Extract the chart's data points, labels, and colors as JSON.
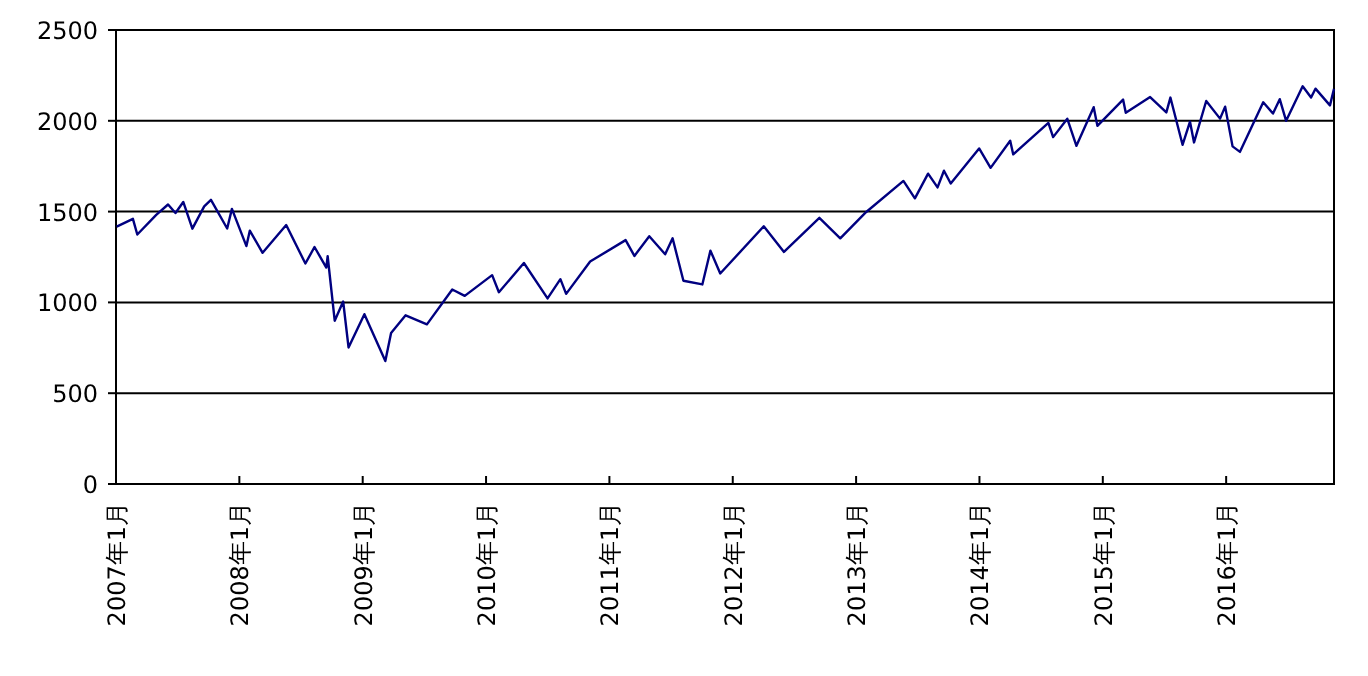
{
  "chart_data": {
    "type": "line",
    "color": "#000080",
    "x": [
      "2007-01-03",
      "2007-02-20",
      "2007-03-05",
      "2007-04-30",
      "2007-06-04",
      "2007-06-26",
      "2007-07-19",
      "2007-08-15",
      "2007-09-19",
      "2007-10-09",
      "2007-11-26",
      "2007-12-10",
      "2008-01-22",
      "2008-02-01",
      "2008-03-10",
      "2008-05-19",
      "2008-07-15",
      "2008-08-11",
      "2008-09-15",
      "2008-09-19",
      "2008-10-10",
      "2008-11-04",
      "2008-11-20",
      "2009-01-06",
      "2009-03-09",
      "2009-03-26",
      "2009-05-08",
      "2009-07-10",
      "2009-09-23",
      "2009-10-30",
      "2010-01-19",
      "2010-02-08",
      "2010-04-23",
      "2010-07-02",
      "2010-08-09",
      "2010-08-26",
      "2010-11-05",
      "2011-02-18",
      "2011-03-16",
      "2011-04-29",
      "2011-06-15",
      "2011-07-07",
      "2011-08-08",
      "2011-10-03",
      "2011-10-27",
      "2011-11-25",
      "2012-04-02",
      "2012-06-01",
      "2012-09-14",
      "2012-11-15",
      "2013-01-31",
      "2013-05-21",
      "2013-06-24",
      "2013-08-02",
      "2013-08-30",
      "2013-09-18",
      "2013-10-08",
      "2013-12-31",
      "2014-02-03",
      "2014-04-02",
      "2014-04-11",
      "2014-07-24",
      "2014-08-07",
      "2014-09-18",
      "2014-10-15",
      "2014-12-05",
      "2014-12-16",
      "2015-03-02",
      "2015-03-10",
      "2015-05-21",
      "2015-07-08",
      "2015-07-20",
      "2015-08-25",
      "2015-09-16",
      "2015-09-28",
      "2015-11-03",
      "2015-12-14",
      "2015-12-29",
      "2016-01-20",
      "2016-02-11",
      "2016-04-20",
      "2016-05-19",
      "2016-06-08",
      "2016-06-27",
      "2016-08-15",
      "2016-09-09",
      "2016-09-22",
      "2016-11-04",
      "2016-11-16"
    ],
    "values": [
      1417,
      1460,
      1374,
      1482,
      1539,
      1492,
      1553,
      1406,
      1529,
      1565,
      1407,
      1515,
      1310,
      1395,
      1273,
      1426,
      1214,
      1305,
      1192,
      1255,
      899,
      1005,
      752,
      935,
      677,
      832,
      929,
      879,
      1071,
      1036,
      1150,
      1056,
      1217,
      1022,
      1128,
      1047,
      1225,
      1343,
      1256,
      1364,
      1265,
      1353,
      1119,
      1099,
      1285,
      1159,
      1419,
      1278,
      1466,
      1353,
      1498,
      1669,
      1573,
      1709,
      1633,
      1725,
      1655,
      1848,
      1741,
      1890,
      1815,
      1988,
      1910,
      2011,
      1862,
      2075,
      1972,
      2117,
      2044,
      2131,
      2046,
      2128,
      1868,
      1995,
      1881,
      2109,
      2012,
      2078,
      1859,
      1829,
      2102,
      2040,
      2119,
      2000,
      2190,
      2128,
      2177,
      2085,
      2176
    ],
    "xlim": [
      "2007-01-01",
      "2016-11-16"
    ],
    "xticks": [
      {
        "value": "2007-01",
        "label": "2007年1月"
      },
      {
        "value": "2008-01",
        "label": "2008年1月"
      },
      {
        "value": "2009-01",
        "label": "2009年1月"
      },
      {
        "value": "2010-01",
        "label": "2010年1月"
      },
      {
        "value": "2011-01",
        "label": "2011年1月"
      },
      {
        "value": "2012-01",
        "label": "2012年1月"
      },
      {
        "value": "2013-01",
        "label": "2013年1月"
      },
      {
        "value": "2014-01",
        "label": "2014年1月"
      },
      {
        "value": "2015-01",
        "label": "2015年1月"
      },
      {
        "value": "2016-01",
        "label": "2016年1月"
      }
    ],
    "ylim": [
      0,
      2500
    ],
    "yticks": [
      0,
      500,
      1000,
      1500,
      2000,
      2500
    ],
    "grid": "y"
  }
}
